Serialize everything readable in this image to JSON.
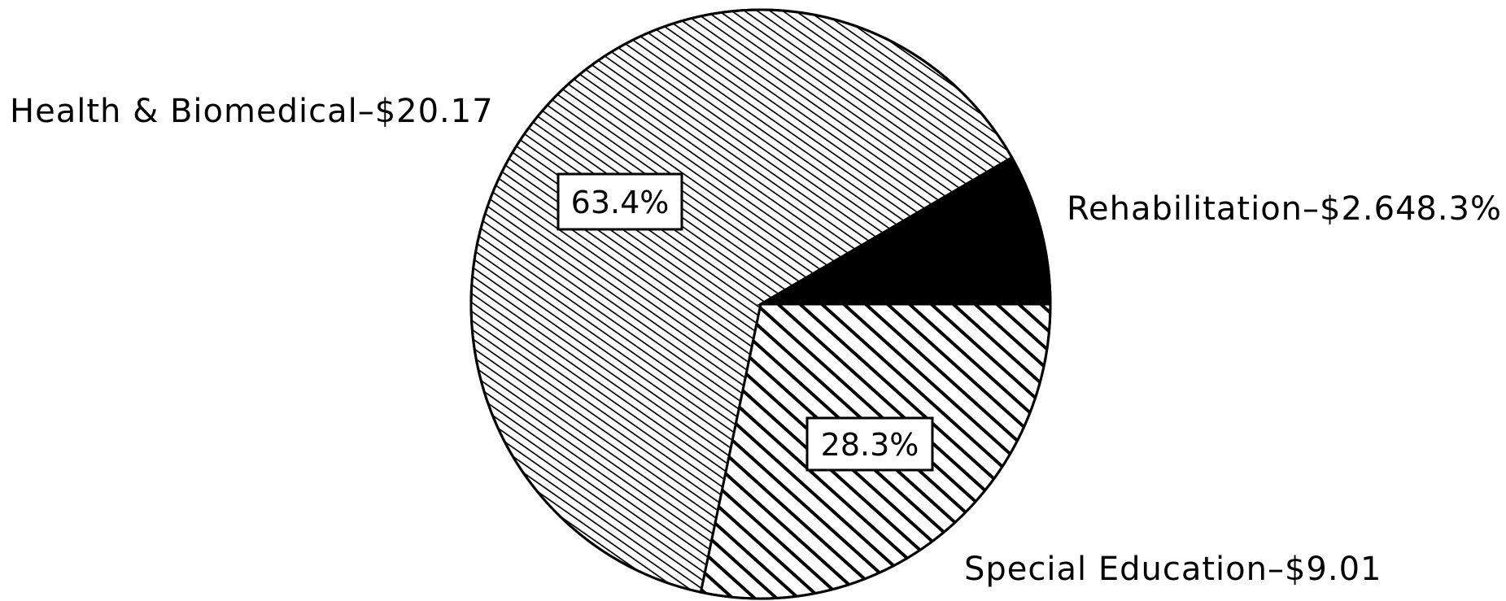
{
  "chart_data": {
    "type": "pie",
    "slices": [
      {
        "label": "Health & Biomedical–$20.17",
        "category": "Health & Biomedical",
        "value": 20.17,
        "percent": 63.4,
        "percent_label": "63.4%",
        "pattern": "fine-hatch"
      },
      {
        "label": "Rehabilitation–$2.64",
        "category": "Rehabilitation",
        "value": 2.64,
        "percent": 8.3,
        "percent_label": "8.3%",
        "pattern": "solid-black"
      },
      {
        "label": "Special Education–$9.01",
        "category": "Special Education",
        "value": 9.01,
        "percent": 28.3,
        "percent_label": "28.3%",
        "pattern": "bold-hatch"
      }
    ]
  },
  "colors": {
    "ink": "#000000",
    "paper": "#ffffff"
  }
}
